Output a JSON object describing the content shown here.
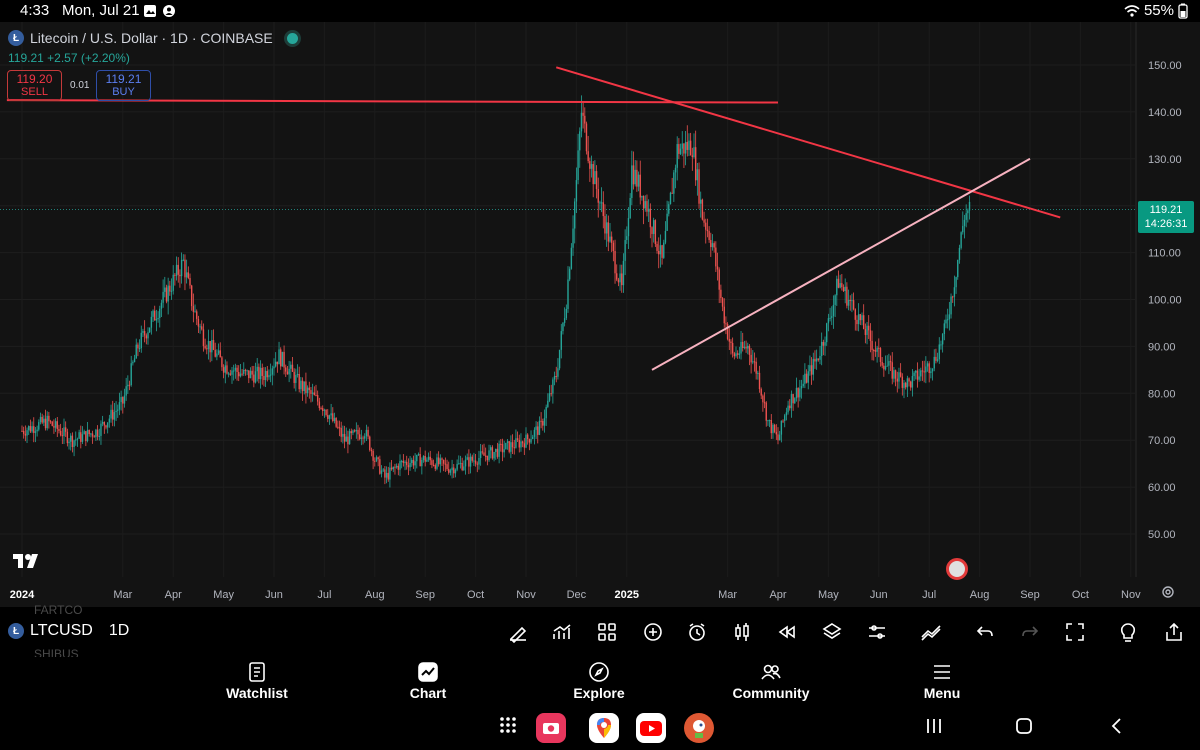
{
  "status_bar": {
    "time": "4:33",
    "date": "Mon, Jul 21",
    "battery": "55%"
  },
  "legend": {
    "title": "Litecoin / U.S. Dollar · 1D · COINBASE",
    "coin_letter": "Ł",
    "line2": "119.21  +2.57 (+2.20%)"
  },
  "trade": {
    "sell_price": "119.20",
    "sell_label": "SELL",
    "buy_price": "119.21",
    "buy_label": "BUY",
    "spread": "0.01"
  },
  "price_label": {
    "price": "119.21",
    "countdown": "14:26:31"
  },
  "chart_data": {
    "type": "candlestick",
    "symbol": "LTCUSD",
    "interval": "1D",
    "y_ticks": [
      "150.00",
      "140.00",
      "130.00",
      "120.00",
      "110.00",
      "100.00",
      "90.00",
      "80.00",
      "70.00",
      "60.00",
      "50.00"
    ],
    "y_range": [
      43,
      155
    ],
    "x_ticks": [
      {
        "label": "2024",
        "t": 0
      },
      {
        "label": "Mar",
        "t": 2
      },
      {
        "label": "Apr",
        "t": 3
      },
      {
        "label": "May",
        "t": 4
      },
      {
        "label": "Jun",
        "t": 5
      },
      {
        "label": "Jul",
        "t": 6
      },
      {
        "label": "Aug",
        "t": 7
      },
      {
        "label": "Sep",
        "t": 8
      },
      {
        "label": "Oct",
        "t": 9
      },
      {
        "label": "Nov",
        "t": 10
      },
      {
        "label": "Dec",
        "t": 11
      },
      {
        "label": "2025",
        "t": 12
      },
      {
        "label": "Mar",
        "t": 14
      },
      {
        "label": "Apr",
        "t": 15
      },
      {
        "label": "May",
        "t": 16
      },
      {
        "label": "Jun",
        "t": 17
      },
      {
        "label": "Jul",
        "t": 18
      },
      {
        "label": "Aug",
        "t": 19
      },
      {
        "label": "Sep",
        "t": 20
      },
      {
        "label": "Oct",
        "t": 21
      },
      {
        "label": "Nov",
        "t": 22
      }
    ],
    "price_path": [
      [
        0,
        72
      ],
      [
        0.5,
        74
      ],
      [
        1,
        70
      ],
      [
        1.5,
        72
      ],
      [
        2,
        78
      ],
      [
        2.3,
        90
      ],
      [
        2.6,
        96
      ],
      [
        3,
        104
      ],
      [
        3.2,
        108
      ],
      [
        3.4,
        98
      ],
      [
        3.6,
        92
      ],
      [
        4,
        86
      ],
      [
        4.4,
        84
      ],
      [
        4.8,
        84
      ],
      [
        5.1,
        88
      ],
      [
        5.5,
        82
      ],
      [
        6,
        77
      ],
      [
        6.4,
        70
      ],
      [
        6.8,
        72
      ],
      [
        7,
        66
      ],
      [
        7.2,
        62
      ],
      [
        7.5,
        65
      ],
      [
        8,
        66
      ],
      [
        8.5,
        64
      ],
      [
        9,
        66
      ],
      [
        9.5,
        68
      ],
      [
        10,
        70
      ],
      [
        10.3,
        73
      ],
      [
        10.6,
        84
      ],
      [
        10.8,
        100
      ],
      [
        11,
        125
      ],
      [
        11.1,
        140
      ],
      [
        11.3,
        128
      ],
      [
        11.6,
        115
      ],
      [
        11.9,
        102
      ],
      [
        12.1,
        128
      ],
      [
        12.4,
        120
      ],
      [
        12.7,
        108
      ],
      [
        13,
        132
      ],
      [
        13.3,
        133
      ],
      [
        13.5,
        118
      ],
      [
        13.7,
        112
      ],
      [
        13.9,
        98
      ],
      [
        14.1,
        88
      ],
      [
        14.4,
        90
      ],
      [
        14.6,
        84
      ],
      [
        14.8,
        74
      ],
      [
        15,
        70
      ],
      [
        15.2,
        78
      ],
      [
        15.5,
        82
      ],
      [
        15.8,
        88
      ],
      [
        16,
        95
      ],
      [
        16.2,
        104
      ],
      [
        16.5,
        98
      ],
      [
        16.8,
        92
      ],
      [
        17,
        88
      ],
      [
        17.3,
        84
      ],
      [
        17.6,
        82
      ],
      [
        17.9,
        85
      ],
      [
        18.1,
        87
      ],
      [
        18.3,
        93
      ],
      [
        18.5,
        104
      ],
      [
        18.7,
        118
      ],
      [
        18.8,
        119.21
      ]
    ],
    "trendlines": [
      {
        "color": "#f23645",
        "from": [
          10.6,
          149.5
        ],
        "to": [
          20.6,
          117.5
        ]
      },
      {
        "color": "#f23645",
        "from": [
          -0.3,
          142.5
        ],
        "to": [
          15.0,
          142
        ]
      },
      {
        "color": "#f7b2c0",
        "from": [
          12.5,
          85
        ],
        "to": [
          20.0,
          130
        ]
      }
    ],
    "current_price": 119.21
  },
  "toolbar": {
    "symbol": "LTCUSD",
    "interval": "1D",
    "ghost_above": "FARTCO",
    "ghost_below": "SHIBUS"
  },
  "nav": {
    "watchlist": "Watchlist",
    "chart": "Chart",
    "explore": "Explore",
    "community": "Community",
    "menu": "Menu"
  },
  "colors": {
    "up": "#26a69a",
    "down": "#ef5350",
    "bg": "#131313",
    "accent": "#089981"
  }
}
